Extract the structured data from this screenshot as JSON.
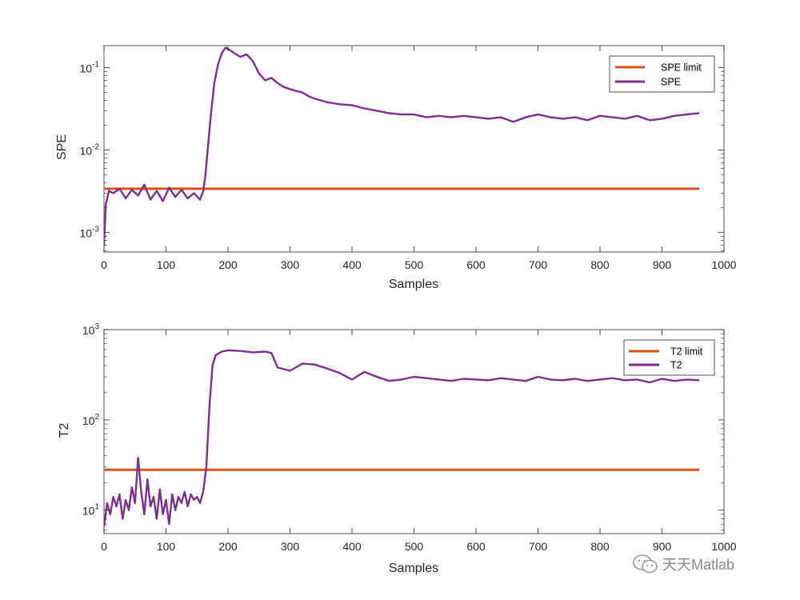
{
  "colors": {
    "limit": "#D95319",
    "series": "#7E2F8E",
    "axis": "#262626"
  },
  "watermark": {
    "text": "天天Matlab",
    "icon": "wechat-icon"
  },
  "chart_data": [
    {
      "type": "line",
      "ylabel": "SPE",
      "xlabel": "Samples",
      "xlim": [
        0,
        1000
      ],
      "ylim": [
        0.00058,
        0.185
      ],
      "yscale": "log",
      "xticks": [
        0,
        100,
        200,
        300,
        400,
        500,
        600,
        700,
        800,
        900,
        1000
      ],
      "yticks": [
        {
          "value": 0.001,
          "base": "10",
          "exp": "-3"
        },
        {
          "value": 0.01,
          "base": "10",
          "exp": "-2"
        },
        {
          "value": 0.1,
          "base": "10",
          "exp": "-1"
        }
      ],
      "legend": "top-right",
      "series": [
        {
          "name": "SPE limit",
          "color": "#D95319",
          "x": [
            1,
            960
          ],
          "values": [
            0.0034,
            0.0034
          ]
        },
        {
          "name": "SPE",
          "color": "#7E2F8E",
          "x": [
            0,
            3,
            8,
            15,
            25,
            35,
            45,
            55,
            65,
            75,
            85,
            95,
            105,
            115,
            125,
            135,
            145,
            155,
            160,
            163,
            167,
            172,
            178,
            184,
            190,
            196,
            202,
            210,
            220,
            230,
            240,
            250,
            260,
            270,
            280,
            290,
            300,
            310,
            320,
            330,
            340,
            350,
            360,
            380,
            400,
            420,
            440,
            460,
            480,
            500,
            520,
            540,
            560,
            580,
            600,
            620,
            640,
            660,
            680,
            700,
            720,
            740,
            760,
            780,
            800,
            820,
            840,
            860,
            880,
            900,
            920,
            940,
            960
          ],
          "values": [
            0.0007,
            0.0022,
            0.0032,
            0.003,
            0.0034,
            0.0026,
            0.0033,
            0.0028,
            0.0038,
            0.0025,
            0.0032,
            0.0024,
            0.0035,
            0.0027,
            0.0033,
            0.0026,
            0.003,
            0.0025,
            0.0032,
            0.0045,
            0.0095,
            0.025,
            0.065,
            0.11,
            0.15,
            0.175,
            0.165,
            0.15,
            0.135,
            0.145,
            0.12,
            0.085,
            0.07,
            0.075,
            0.065,
            0.058,
            0.055,
            0.052,
            0.05,
            0.045,
            0.042,
            0.04,
            0.038,
            0.036,
            0.035,
            0.032,
            0.03,
            0.028,
            0.027,
            0.027,
            0.025,
            0.026,
            0.025,
            0.026,
            0.025,
            0.024,
            0.025,
            0.022,
            0.025,
            0.027,
            0.025,
            0.024,
            0.025,
            0.023,
            0.026,
            0.025,
            0.024,
            0.026,
            0.023,
            0.024,
            0.026,
            0.027,
            0.028
          ]
        }
      ]
    },
    {
      "type": "line",
      "ylabel": "T2",
      "xlabel": "Samples",
      "xlim": [
        0,
        1000
      ],
      "ylim": [
        5.5,
        1000
      ],
      "yscale": "log",
      "xticks": [
        0,
        100,
        200,
        300,
        400,
        500,
        600,
        700,
        800,
        900,
        1000
      ],
      "yticks": [
        {
          "value": 10,
          "base": "10",
          "exp": "1"
        },
        {
          "value": 100,
          "base": "10",
          "exp": "2"
        },
        {
          "value": 1000,
          "base": "10",
          "exp": "3"
        }
      ],
      "legend": "top-right",
      "series": [
        {
          "name": "T2 limit",
          "color": "#D95319",
          "x": [
            1,
            960
          ],
          "values": [
            28,
            28
          ]
        },
        {
          "name": "T2",
          "color": "#7E2F8E",
          "x": [
            0,
            5,
            10,
            15,
            20,
            25,
            30,
            35,
            40,
            45,
            50,
            55,
            60,
            65,
            70,
            75,
            80,
            85,
            90,
            95,
            100,
            105,
            110,
            115,
            120,
            125,
            130,
            135,
            140,
            145,
            150,
            155,
            160,
            165,
            170,
            175,
            180,
            190,
            200,
            220,
            240,
            260,
            270,
            280,
            300,
            320,
            340,
            360,
            380,
            400,
            420,
            440,
            460,
            480,
            500,
            520,
            540,
            560,
            580,
            600,
            620,
            640,
            660,
            680,
            700,
            720,
            740,
            760,
            780,
            800,
            820,
            840,
            860,
            880,
            900,
            920,
            940,
            960
          ],
          "values": [
            6.5,
            12,
            9,
            14,
            11,
            15,
            8,
            13,
            10,
            18,
            12,
            38,
            16,
            9,
            22,
            11,
            14,
            8,
            17,
            9,
            13,
            7,
            15,
            10,
            14,
            12,
            16,
            11,
            15,
            13,
            14,
            12,
            16,
            30,
            140,
            400,
            520,
            570,
            590,
            580,
            560,
            570,
            550,
            380,
            350,
            420,
            410,
            370,
            330,
            280,
            340,
            300,
            270,
            280,
            300,
            290,
            280,
            270,
            285,
            280,
            275,
            290,
            280,
            270,
            300,
            280,
            275,
            285,
            270,
            280,
            290,
            275,
            280,
            260,
            285,
            270,
            280,
            275
          ]
        }
      ]
    }
  ]
}
